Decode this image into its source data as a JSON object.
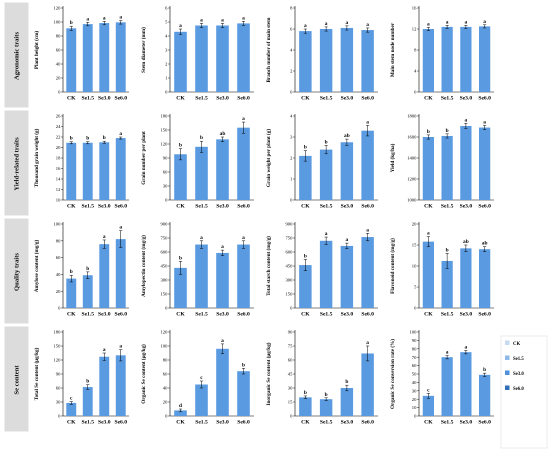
{
  "figure": {
    "row_labels": [
      "Agronomic traits",
      "Yield-related traits",
      "Quality traits",
      "Se content"
    ],
    "legend": {
      "items": [
        {
          "label": "CK",
          "color": "#c6daf1"
        },
        {
          "label": "Se1.5",
          "color": "#8db8e8"
        },
        {
          "label": "Se3.0",
          "color": "#4f90dc"
        },
        {
          "label": "Se6.0",
          "color": "#2e6fb8"
        }
      ]
    }
  },
  "chart_data": [
    {
      "type": "bar",
      "ylabel": "Plant height (cm)",
      "categories": [
        "CK",
        "Se1.5",
        "Se3.0",
        "Se6.0"
      ],
      "values": [
        91,
        97,
        98.5,
        99.5
      ],
      "errors": [
        3,
        2.5,
        2.5,
        2.5
      ],
      "letters": [
        "b",
        "a",
        "a",
        "a"
      ],
      "ylim": [
        0,
        120
      ],
      "ticks": [
        0,
        20,
        40,
        60,
        80,
        100,
        120
      ]
    },
    {
      "type": "bar",
      "ylabel": "Stem diameter (mm)",
      "categories": [
        "CK",
        "Se1.5",
        "Se3.0",
        "Se6.0"
      ],
      "values": [
        4.3,
        4.75,
        4.75,
        4.9
      ],
      "errors": [
        0.2,
        0.15,
        0.15,
        0.15
      ],
      "letters": [
        "a",
        "a",
        "a",
        "a"
      ],
      "ylim": [
        0,
        6
      ],
      "ticks": [
        0,
        1,
        2,
        3,
        4,
        5,
        6
      ]
    },
    {
      "type": "bar",
      "ylabel": "Branch number of main stem",
      "categories": [
        "CK",
        "Se1.5",
        "Se3.0",
        "Se6.0"
      ],
      "values": [
        5.8,
        6,
        6.1,
        5.9
      ],
      "errors": [
        0.2,
        0.2,
        0.2,
        0.2
      ],
      "letters": [
        "a",
        "a",
        "a",
        "a"
      ],
      "ylim": [
        0,
        8
      ],
      "ticks": [
        0,
        2,
        4,
        6,
        8
      ]
    },
    {
      "type": "bar",
      "ylabel": "Main stem node number",
      "categories": [
        "CK",
        "Se1.5",
        "Se3.0",
        "Se6.0"
      ],
      "values": [
        12,
        12.4,
        12.4,
        12.5
      ],
      "errors": [
        0.3,
        0.3,
        0.3,
        0.3
      ],
      "letters": [
        "a",
        "a",
        "a",
        "a"
      ],
      "ylim": [
        0,
        16
      ],
      "ticks": [
        0,
        4,
        8,
        12,
        16
      ]
    },
    {
      "type": "bar",
      "ylabel": "Thousand grain weight (g)",
      "categories": [
        "CK",
        "Se1.5",
        "Se3.0",
        "Se6.0"
      ],
      "values": [
        20.9,
        20.9,
        21,
        21.8
      ],
      "errors": [
        0.2,
        0.2,
        0.2,
        0.2
      ],
      "letters": [
        "b",
        "b",
        "b",
        "a"
      ],
      "ylim": [
        10,
        26
      ],
      "ticks": [
        10,
        12,
        14,
        16,
        18,
        20,
        22,
        24,
        26
      ]
    },
    {
      "type": "bar",
      "ylabel": "Grain number per plant",
      "categories": [
        "CK",
        "Se1.5",
        "Se3.0",
        "Se6.0"
      ],
      "values": [
        98,
        114,
        130,
        155
      ],
      "errors": [
        12,
        12,
        5,
        12
      ],
      "letters": [
        "b",
        "b",
        "ab",
        "a"
      ],
      "ylim": [
        0,
        180
      ],
      "ticks": [
        0,
        30,
        60,
        90,
        120,
        150,
        180
      ]
    },
    {
      "type": "bar",
      "ylabel": "Grain weight per plant (g)",
      "categories": [
        "CK",
        "Se1.5",
        "Se3.0",
        "Se6.0"
      ],
      "values": [
        2.1,
        2.4,
        2.75,
        3.3
      ],
      "errors": [
        0.25,
        0.2,
        0.15,
        0.25
      ],
      "letters": [
        "b",
        "b",
        "ab",
        "a"
      ],
      "ylim": [
        0,
        4
      ],
      "ticks": [
        0,
        1,
        2,
        3,
        4
      ]
    },
    {
      "type": "bar",
      "ylabel": "Yield (kg/ha)",
      "categories": [
        "CK",
        "Se1.5",
        "Se3.0",
        "Se6.0"
      ],
      "values": [
        1600,
        1610,
        1705,
        1690
      ],
      "errors": [
        20,
        20,
        25,
        20
      ],
      "letters": [
        "b",
        "b",
        "a",
        "a"
      ],
      "ylim": [
        1000,
        1800
      ],
      "ticks": [
        1000,
        1200,
        1400,
        1600,
        1800
      ]
    },
    {
      "type": "bar",
      "ylabel": "Amylose content (mg/g)",
      "categories": [
        "CK",
        "Se1.5",
        "Se3.0",
        "Se6.0"
      ],
      "values": [
        35,
        39,
        76,
        82
      ],
      "errors": [
        4,
        4,
        5,
        10
      ],
      "letters": [
        "b",
        "b",
        "a",
        "a"
      ],
      "ylim": [
        0,
        100
      ],
      "ticks": [
        0,
        20,
        40,
        60,
        80,
        100
      ]
    },
    {
      "type": "bar",
      "ylabel": "Amylopectin content (mg/g)",
      "categories": [
        "CK",
        "Se1.5",
        "Se3.0",
        "Se6.0"
      ],
      "values": [
        430,
        680,
        590,
        680
      ],
      "errors": [
        70,
        40,
        30,
        40
      ],
      "letters": [
        "b",
        "a",
        "a",
        "a"
      ],
      "ylim": [
        0,
        900
      ],
      "ticks": [
        0,
        150,
        300,
        450,
        600,
        750,
        900
      ]
    },
    {
      "type": "bar",
      "ylabel": "Total starch content (mg/g)",
      "categories": [
        "CK",
        "Se1.5",
        "Se3.0",
        "Se6.0"
      ],
      "values": [
        460,
        720,
        665,
        760
      ],
      "errors": [
        60,
        40,
        30,
        40
      ],
      "letters": [
        "b",
        "a",
        "a",
        "a"
      ],
      "ylim": [
        0,
        900
      ],
      "ticks": [
        0,
        150,
        300,
        450,
        600,
        750,
        900
      ]
    },
    {
      "type": "bar",
      "ylabel": "Flavonoid content (mg/g)",
      "categories": [
        "CK",
        "Se1.5",
        "Se3.0",
        "Se6.0"
      ],
      "values": [
        15.8,
        11.2,
        14.2,
        14
      ],
      "errors": [
        1.2,
        1.8,
        0.8,
        0.6
      ],
      "letters": [
        "a",
        "b",
        "ab",
        "ab"
      ],
      "ylim": [
        0,
        20
      ],
      "ticks": [
        0,
        5,
        10,
        15,
        20
      ]
    },
    {
      "type": "bar",
      "ylabel": "Total Se content (μg/kg)",
      "categories": [
        "CK",
        "Se1.5",
        "Se3.0",
        "Se6.0"
      ],
      "values": [
        28,
        62,
        127,
        130
      ],
      "errors": [
        3,
        5,
        8,
        12
      ],
      "letters": [
        "c",
        "b",
        "a",
        "a"
      ],
      "ylim": [
        0,
        180
      ],
      "ticks": [
        0,
        30,
        60,
        90,
        120,
        150,
        180
      ]
    },
    {
      "type": "bar",
      "ylabel": "Organic Se content (μg/kg)",
      "categories": [
        "CK",
        "Se1.5",
        "Se3.0",
        "Se6.0"
      ],
      "values": [
        8,
        45,
        96,
        64
      ],
      "errors": [
        2,
        5,
        7,
        4
      ],
      "letters": [
        "d",
        "c",
        "a",
        "b"
      ],
      "ylim": [
        0,
        120
      ],
      "ticks": [
        0,
        20,
        40,
        60,
        80,
        100,
        120
      ]
    },
    {
      "type": "bar",
      "ylabel": "Inorganic Se content (μg/kg)",
      "categories": [
        "CK",
        "Se1.5",
        "Se3.0",
        "Se6.0"
      ],
      "values": [
        20,
        18,
        30,
        67
      ],
      "errors": [
        1.5,
        1.5,
        3,
        8
      ],
      "letters": [
        "b",
        "b",
        "b",
        "a"
      ],
      "ylim": [
        0,
        90
      ],
      "ticks": [
        0,
        15,
        30,
        45,
        60,
        75,
        90
      ]
    },
    {
      "type": "bar",
      "ylabel": "Organic Se conversion rate (%)",
      "categories": [
        "CK",
        "Se1.5",
        "Se3.0",
        "Se6.0"
      ],
      "values": [
        24,
        70,
        76,
        49
      ],
      "errors": [
        3,
        2,
        2,
        2
      ],
      "letters": [
        "c",
        "a",
        "a",
        "b"
      ],
      "ylim": [
        0,
        100
      ],
      "ticks": [
        0,
        10,
        20,
        30,
        40,
        50,
        60,
        70,
        80,
        90,
        100
      ]
    }
  ]
}
